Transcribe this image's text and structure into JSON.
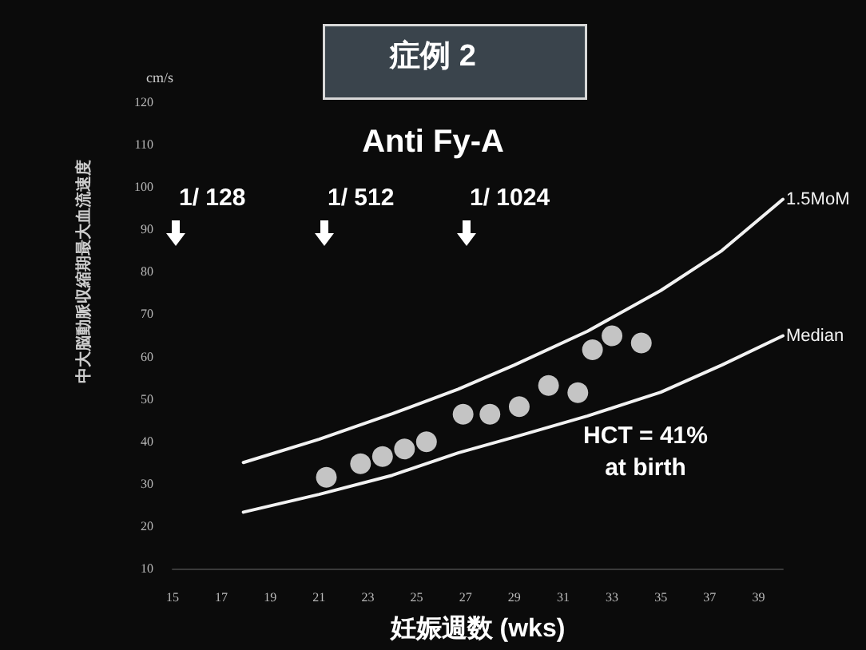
{
  "chart_data": {
    "type": "scatter",
    "title": "症例 2",
    "subtitle": "Anti Fy-A",
    "xlabel": "妊娠週数 (wks)",
    "ylabel": "中大脳動脈収縮期最大血流速度",
    "xlim": [
      15,
      40
    ],
    "ylim": [
      10,
      120
    ],
    "xticks": [
      15,
      17,
      19,
      21,
      23,
      25,
      27,
      29,
      31,
      33,
      35,
      37,
      39
    ],
    "yticks": [
      10,
      20,
      30,
      40,
      50,
      60,
      70,
      80,
      90,
      100,
      110,
      120
    ],
    "grid": false,
    "legend": false,
    "marker": "circle",
    "series": [
      {
        "color": "#f2f2f2",
        "x": [
          21.3,
          22.7,
          23.6,
          24.5,
          25.4,
          26.9,
          28.0,
          29.2,
          30.4,
          31.6,
          32.2,
          33.0,
          34.2
        ],
        "values": [
          31.5,
          34.7,
          36.4,
          38.2,
          39.9,
          46.4,
          46.4,
          48.2,
          53.2,
          51.5,
          61.6,
          64.9,
          63.2
        ]
      },
      {
        "name": "1.5MoM",
        "type": "line",
        "color": "#f2f2f2",
        "marker": "none",
        "x": [
          17.9,
          21,
          24,
          26.7,
          29,
          32,
          35,
          37.5,
          40
        ],
        "values": [
          35.0,
          40.5,
          46.5,
          52.3,
          58,
          66,
          75.6,
          85,
          97.1
        ]
      },
      {
        "name": "Median",
        "type": "line",
        "color": "#f2f2f2",
        "marker": "none",
        "x": [
          17.9,
          21,
          24,
          26.7,
          29,
          32,
          35,
          37.5,
          40
        ],
        "values": [
          23.3,
          27.5,
          32,
          37.3,
          41,
          46,
          51.6,
          58,
          64.9
        ]
      }
    ],
    "annotations": [
      "cm/s",
      "1/ 128",
      "1/ 512",
      "1/ 1024",
      "HCT = 41%\nat birth"
    ]
  }
}
